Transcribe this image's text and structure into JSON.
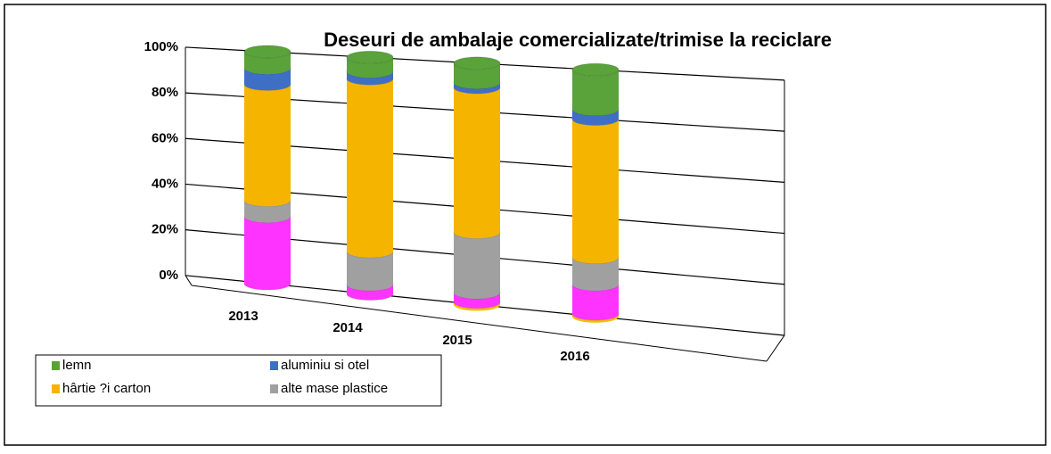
{
  "chart_data": {
    "type": "stacked_cylinder",
    "title": "Deseuri de ambalaje comercializate/trimise la reciclare",
    "categories": [
      "2013",
      "2014",
      "2015",
      "2016"
    ],
    "series": [
      {
        "color": "#f0c000",
        "values": [
          0,
          0,
          1,
          1
        ]
      },
      {
        "color": "#ff33ff",
        "values": [
          29,
          4,
          4,
          12
        ]
      },
      {
        "name": "alte mase plastice",
        "color": "#a0a0a0",
        "values": [
          7,
          14,
          25,
          11
        ]
      },
      {
        "name": "hârtie ?i carton",
        "color": "#f5b400",
        "values": [
          50,
          73,
          60,
          56
        ]
      },
      {
        "name": "aluminiu si otel",
        "color": "#3f6fc4",
        "values": [
          7,
          3,
          2,
          4
        ]
      },
      {
        "name": "lemn",
        "color": "#5aa23a",
        "values": [
          7,
          6,
          8,
          16
        ]
      }
    ],
    "ylim": [
      0,
      100
    ],
    "yticks": [
      {
        "value": 0,
        "label": "0%"
      },
      {
        "value": 20,
        "label": "20%"
      },
      {
        "value": 40,
        "label": "40%"
      },
      {
        "value": 60,
        "label": "60%"
      },
      {
        "value": 80,
        "label": "80%"
      },
      {
        "value": 100,
        "label": "100%"
      }
    ],
    "grid": true
  }
}
